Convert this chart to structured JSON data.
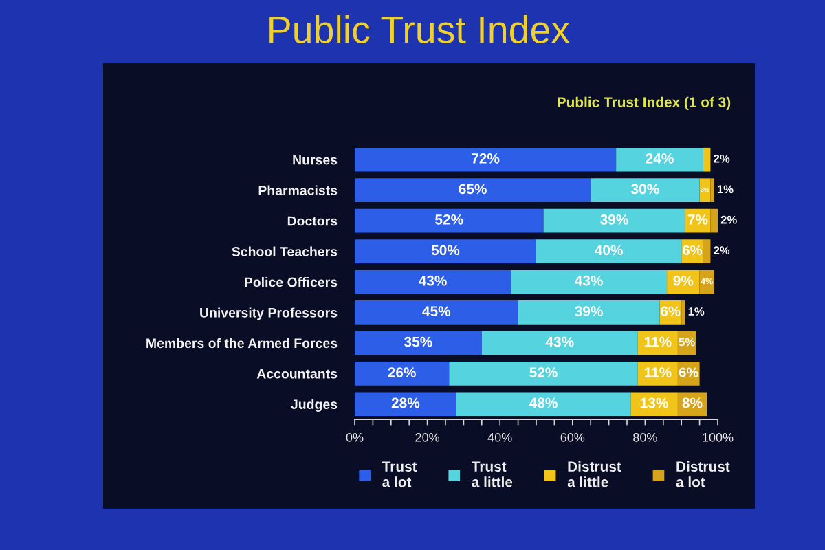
{
  "chart_data": {
    "type": "bar",
    "orientation": "horizontal",
    "stacked": true,
    "title": "Public Trust Index",
    "subtitle": "Public Trust Index (1 of 3)",
    "categories": [
      "Nurses",
      "Pharmacists",
      "Doctors",
      "School Teachers",
      "Police Officers",
      "University Professors",
      "Members of the Armed Forces",
      "Accountants",
      "Judges"
    ],
    "series": [
      {
        "name": "Trust\na lot",
        "color": "#2c5ee8",
        "values": [
          72,
          65,
          52,
          50,
          43,
          45,
          35,
          26,
          28
        ],
        "value_labels": [
          "72%",
          "65%",
          "52%",
          "50%",
          "43%",
          "45%",
          "35%",
          "26%",
          "28%"
        ]
      },
      {
        "name": "Trust\na little",
        "color": "#55d3df",
        "values": [
          24,
          30,
          39,
          40,
          43,
          39,
          43,
          52,
          48
        ],
        "value_labels": [
          "24%",
          "30%",
          "39%",
          "40%",
          "43%",
          "39%",
          "43%",
          "52%",
          "48%"
        ]
      },
      {
        "name": "Distrust\na little",
        "color": "#f0c419",
        "values": [
          2,
          3,
          7,
          6,
          9,
          6,
          11,
          11,
          13
        ],
        "value_labels": [
          "2%",
          "3%",
          "7%",
          "6%",
          "9%",
          "6%",
          "11%",
          "11%",
          "13%"
        ]
      },
      {
        "name": "Distrust\na lot",
        "color": "#d6a41a",
        "values": [
          null,
          1,
          2,
          2,
          4,
          1,
          5,
          6,
          8
        ],
        "value_labels": [
          null,
          "1%",
          "2%",
          "2%",
          "4%",
          "1%",
          "5%",
          "6%",
          "8%"
        ]
      }
    ],
    "xlim": [
      0,
      100
    ],
    "xticks": [
      {
        "value": 0,
        "label": "0%"
      },
      {
        "value": 5,
        "label": null
      },
      {
        "value": 10,
        "label": null
      },
      {
        "value": 15,
        "label": null
      },
      {
        "value": 20,
        "label": "20%"
      },
      {
        "value": 25,
        "label": null
      },
      {
        "value": 30,
        "label": null
      },
      {
        "value": 35,
        "label": null
      },
      {
        "value": 40,
        "label": "40%"
      },
      {
        "value": 45,
        "label": null
      },
      {
        "value": 50,
        "label": null
      },
      {
        "value": 55,
        "label": null
      },
      {
        "value": 60,
        "label": "60%"
      },
      {
        "value": 65,
        "label": null
      },
      {
        "value": 70,
        "label": null
      },
      {
        "value": 75,
        "label": null
      },
      {
        "value": 80,
        "label": "80%"
      },
      {
        "value": 85,
        "label": null
      },
      {
        "value": 90,
        "label": null
      },
      {
        "value": 95,
        "label": null
      },
      {
        "value": 100,
        "label": "100%"
      }
    ],
    "legend": "bottom"
  }
}
